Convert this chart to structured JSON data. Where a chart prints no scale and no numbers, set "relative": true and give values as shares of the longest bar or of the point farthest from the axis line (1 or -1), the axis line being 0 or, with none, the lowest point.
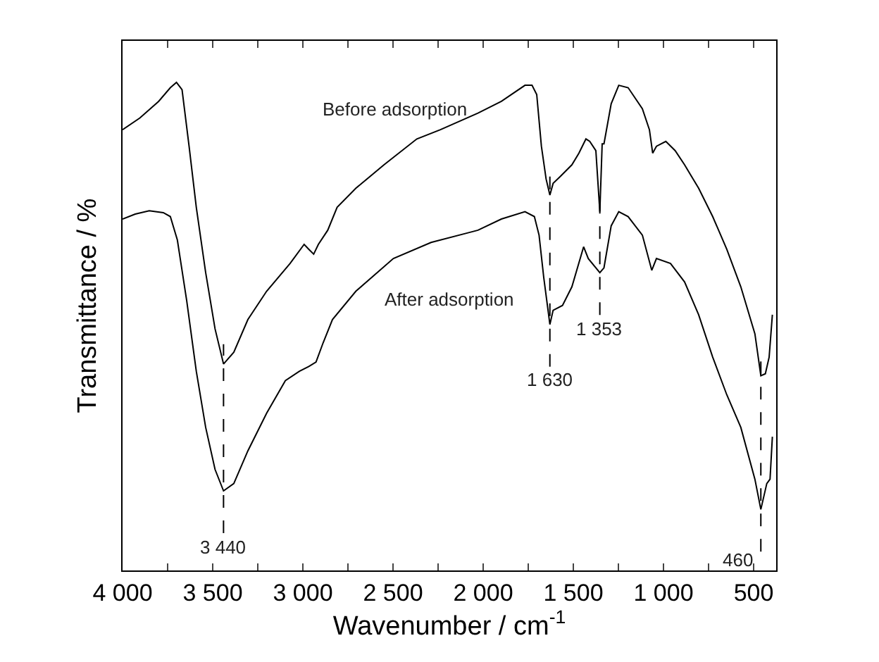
{
  "chart_data": {
    "type": "line",
    "relative": true,
    "xlabel": "Wavenumber / cm$^{-1}$",
    "ylabel": "Transmittance / %",
    "xlim": [
      4000,
      375
    ],
    "xticks": [
      {
        "value": 4000,
        "label": "4 000"
      },
      {
        "value": 3750,
        "label": null
      },
      {
        "value": 3500,
        "label": "3 500"
      },
      {
        "value": 3250,
        "label": null
      },
      {
        "value": 3000,
        "label": "3 000"
      },
      {
        "value": 2750,
        "label": null
      },
      {
        "value": 2500,
        "label": "2 500"
      },
      {
        "value": 2250,
        "label": null
      },
      {
        "value": 2000,
        "label": "2 000"
      },
      {
        "value": 1750,
        "label": null
      },
      {
        "value": 1500,
        "label": "1 500"
      },
      {
        "value": 1250,
        "label": null
      },
      {
        "value": 1000,
        "label": "1 000"
      },
      {
        "value": 750,
        "label": null
      },
      {
        "value": 500,
        "label": "500"
      }
    ],
    "tick_labels": "x",
    "grid": false,
    "legend": false,
    "marker": "none",
    "line_style": "solid",
    "series": [
      {
        "name": "Before adsorption",
        "color": "#000000",
        "x": [
          4000,
          3904,
          3800,
          3735,
          3701,
          3670,
          3631,
          3591,
          3539,
          3487,
          3440,
          3383,
          3305,
          3201,
          3071,
          2993,
          2967,
          2940,
          2914,
          2862,
          2810,
          2706,
          2550,
          2368,
          2237,
          2029,
          1899,
          1768,
          1729,
          1703,
          1677,
          1651,
          1630,
          1612,
          1573,
          1508,
          1469,
          1430,
          1409,
          1375,
          1353,
          1340,
          1330,
          1290,
          1248,
          1196,
          1117,
          1078,
          1060,
          1039,
          987,
          935,
          883,
          805,
          727,
          649,
          571,
          493,
          460,
          435,
          414,
          396
        ],
        "values": [
          0.903,
          0.927,
          0.961,
          0.989,
          1,
          0.985,
          0.869,
          0.744,
          0.61,
          0.495,
          0.423,
          0.447,
          0.514,
          0.572,
          0.629,
          0.668,
          0.658,
          0.648,
          0.668,
          0.697,
          0.744,
          0.783,
          0.831,
          0.884,
          0.903,
          0.937,
          0.961,
          0.994,
          0.994,
          0.975,
          0.869,
          0.802,
          0.769,
          0.793,
          0.807,
          0.831,
          0.855,
          0.884,
          0.879,
          0.86,
          0.735,
          0.874,
          0.874,
          0.956,
          0.994,
          0.989,
          0.946,
          0.903,
          0.855,
          0.869,
          0.879,
          0.86,
          0.831,
          0.783,
          0.725,
          0.658,
          0.581,
          0.485,
          0.399,
          0.403,
          0.437,
          0.524
        ]
      },
      {
        "name": "After adsorption",
        "color": "#000000",
        "x": [
          4000,
          3930,
          3852,
          3774,
          3735,
          3696,
          3644,
          3591,
          3539,
          3487,
          3440,
          3383,
          3305,
          3201,
          3097,
          3019,
          2967,
          2927,
          2888,
          2836,
          2706,
          2498,
          2289,
          2081,
          2029,
          1899,
          1768,
          1716,
          1690,
          1664,
          1630,
          1612,
          1560,
          1508,
          1443,
          1417,
          1353,
          1330,
          1290,
          1248,
          1196,
          1117,
          1065,
          1039,
          961,
          883,
          805,
          727,
          649,
          571,
          493,
          460,
          427,
          409,
          396
        ],
        "values": [
          0.72,
          0.73,
          0.737,
          0.733,
          0.725,
          0.677,
          0.552,
          0.408,
          0.293,
          0.207,
          0.163,
          0.178,
          0.245,
          0.322,
          0.389,
          0.408,
          0.418,
          0.427,
          0.466,
          0.514,
          0.572,
          0.639,
          0.672,
          0.692,
          0.697,
          0.72,
          0.735,
          0.725,
          0.687,
          0.6,
          0.504,
          0.533,
          0.543,
          0.581,
          0.663,
          0.639,
          0.61,
          0.62,
          0.706,
          0.735,
          0.725,
          0.687,
          0.615,
          0.639,
          0.629,
          0.591,
          0.524,
          0.437,
          0.36,
          0.293,
          0.187,
          0.125,
          0.178,
          0.187,
          0.274
        ]
      }
    ],
    "annotations": [
      {
        "text": "3 440",
        "x": 3440,
        "y": 0.163
      },
      {
        "text": "1 630",
        "x": 1630,
        "y": 0.504
      },
      {
        "text": "1 353",
        "x": 1353,
        "y": 0.61
      },
      {
        "text": "460",
        "x": 460,
        "y": 0.125
      }
    ]
  }
}
